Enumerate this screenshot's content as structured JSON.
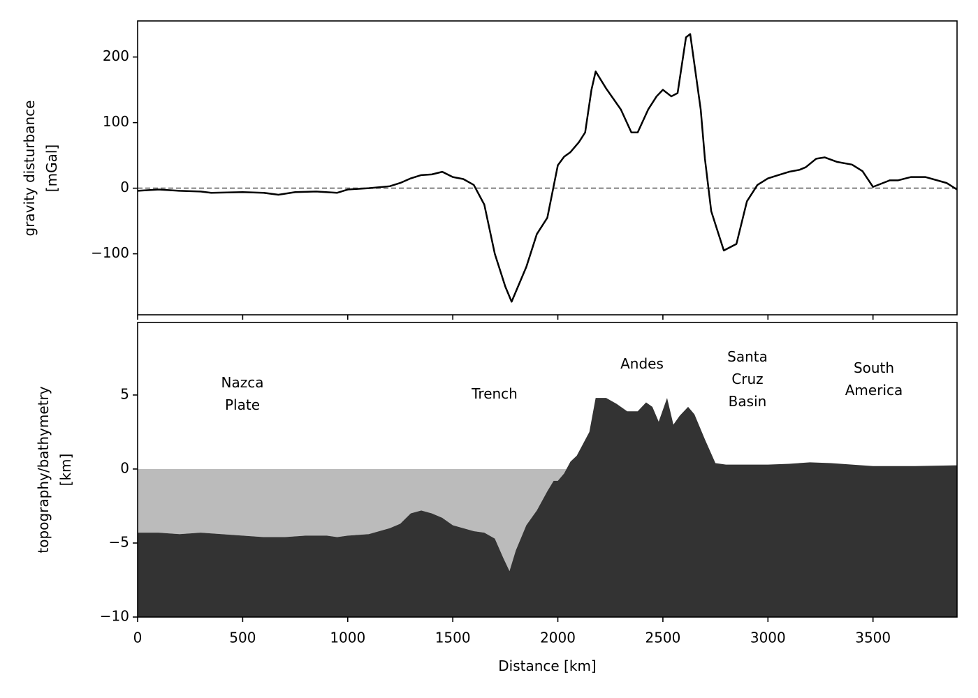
{
  "chart_data": [
    {
      "type": "line",
      "y_label": "gravity disturbance\n[mGal]",
      "x": [
        0,
        100,
        200,
        300,
        350,
        500,
        600,
        670,
        750,
        850,
        950,
        1000,
        1100,
        1200,
        1250,
        1300,
        1350,
        1400,
        1450,
        1500,
        1550,
        1600,
        1650,
        1700,
        1750,
        1780,
        1850,
        1900,
        1950,
        2000,
        2030,
        2060,
        2100,
        2130,
        2160,
        2180,
        2230,
        2300,
        2350,
        2380,
        2430,
        2470,
        2500,
        2540,
        2570,
        2610,
        2630,
        2680,
        2700,
        2730,
        2760,
        2790,
        2850,
        2900,
        2950,
        3000,
        3050,
        3100,
        3150,
        3180,
        3230,
        3270,
        3330,
        3400,
        3450,
        3500,
        3580,
        3620,
        3680,
        3750,
        3850,
        3900
      ],
      "values": [
        -4,
        -2,
        -4,
        -5,
        -7,
        -6,
        -7,
        -10,
        -6,
        -5,
        -7,
        -2,
        0,
        3,
        8,
        15,
        20,
        21,
        25,
        17,
        14,
        5,
        -25,
        -100,
        -150,
        -173,
        -120,
        -70,
        -45,
        35,
        48,
        55,
        70,
        85,
        150,
        178,
        152,
        120,
        85,
        85,
        120,
        140,
        150,
        140,
        145,
        230,
        235,
        120,
        45,
        -35,
        -65,
        -95,
        -85,
        -20,
        5,
        15,
        20,
        25,
        28,
        32,
        45,
        47,
        40,
        36,
        26,
        2,
        12,
        12,
        17,
        17,
        8,
        -2
      ],
      "color": "#000000",
      "reference_line": {
        "value": 0,
        "color": "#808080"
      },
      "xlim": [
        0,
        3900
      ],
      "ylim": [
        -193,
        255
      ],
      "yticks": [
        {
          "value": -100,
          "label": "−100"
        },
        0,
        100,
        200
      ]
    },
    {
      "type": "area",
      "x_label": "Distance [km]",
      "y_label": "topography/bathymetry\n[km]",
      "x": [
        0,
        100,
        200,
        300,
        400,
        500,
        600,
        700,
        800,
        900,
        950,
        1000,
        1100,
        1150,
        1200,
        1250,
        1300,
        1350,
        1400,
        1450,
        1500,
        1550,
        1600,
        1650,
        1700,
        1740,
        1770,
        1800,
        1850,
        1900,
        1950,
        1980,
        2000,
        2030,
        2060,
        2090,
        2150,
        2180,
        2230,
        2280,
        2330,
        2380,
        2420,
        2450,
        2480,
        2520,
        2550,
        2580,
        2620,
        2650,
        2700,
        2750,
        2800,
        2900,
        3000,
        3100,
        3200,
        3300,
        3400,
        3500,
        3700,
        3900
      ],
      "values": [
        -4.3,
        -4.3,
        -4.4,
        -4.3,
        -4.4,
        -4.5,
        -4.6,
        -4.6,
        -4.5,
        -4.5,
        -4.6,
        -4.5,
        -4.4,
        -4.2,
        -4.0,
        -3.7,
        -3.0,
        -2.8,
        -3.0,
        -3.3,
        -3.8,
        -4.0,
        -4.2,
        -4.3,
        -4.7,
        -6.0,
        -6.9,
        -5.5,
        -3.8,
        -2.8,
        -1.5,
        -0.8,
        -0.8,
        -0.3,
        0.5,
        0.9,
        2.5,
        4.8,
        4.8,
        4.4,
        3.9,
        3.9,
        4.5,
        4.2,
        3.2,
        4.8,
        3.0,
        3.6,
        4.2,
        3.7,
        2.0,
        0.4,
        0.3,
        0.3,
        0.3,
        0.35,
        0.45,
        0.4,
        0.3,
        0.2,
        0.2,
        0.25
      ],
      "color": "#333333",
      "sea_level": 0,
      "water_color": "#bbbbbb",
      "annotations": [
        "Nazca\nPlate",
        "Trench",
        "Andes",
        "Santa\nCruz\nBasin",
        "South\nAmerica"
      ],
      "xlim": [
        0,
        3900
      ],
      "ylim": [
        -10,
        9.9
      ],
      "xticks": [
        0,
        500,
        1000,
        1500,
        2000,
        2500,
        3000,
        3500
      ],
      "yticks": [
        {
          "value": -10,
          "label": "−10"
        },
        {
          "value": -5,
          "label": "−5"
        },
        0,
        5
      ]
    }
  ]
}
